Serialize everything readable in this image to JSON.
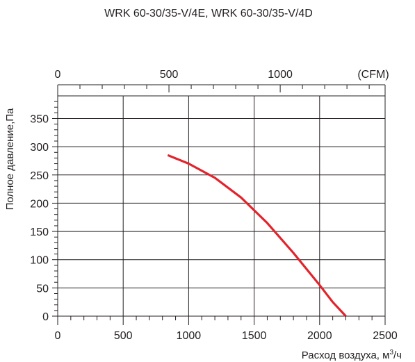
{
  "chart_data": {
    "type": "line",
    "title": "WRK 60-30/35-V/4E, WRK 60-30/35-V/4D",
    "xlabel": "Расход воздуха, м³/ч",
    "xlabel_parts": {
      "main": "Расход воздуха, м",
      "sup": "3",
      "tail": "/ч"
    },
    "ylabel": "Полное давление,Па",
    "xlim": [
      0,
      2500
    ],
    "ylim": [
      0,
      390
    ],
    "x_ticks": [
      0,
      500,
      1000,
      1500,
      2000,
      2500
    ],
    "y_ticks": [
      0,
      50,
      100,
      150,
      200,
      250,
      300,
      350
    ],
    "x_tick_labels": [
      "0",
      "500",
      "1000",
      "1500",
      "2000",
      "2500"
    ],
    "y_tick_labels": [
      "0",
      "50",
      "100",
      "150",
      "200",
      "250",
      "300",
      "350"
    ],
    "secondary_x": {
      "unit_label": "(CFM)",
      "ticks": [
        0,
        500,
        1000
      ],
      "tick_labels": [
        "0",
        "500",
        "1000"
      ],
      "minor_step": 100,
      "max": 1450
    },
    "grid": true,
    "series": [
      {
        "color": "#e3232b",
        "x": [
          840,
          1000,
          1200,
          1400,
          1600,
          1800,
          2000,
          2100,
          2200
        ],
        "y": [
          285,
          270,
          245,
          210,
          165,
          112,
          55,
          25,
          0
        ]
      }
    ]
  }
}
